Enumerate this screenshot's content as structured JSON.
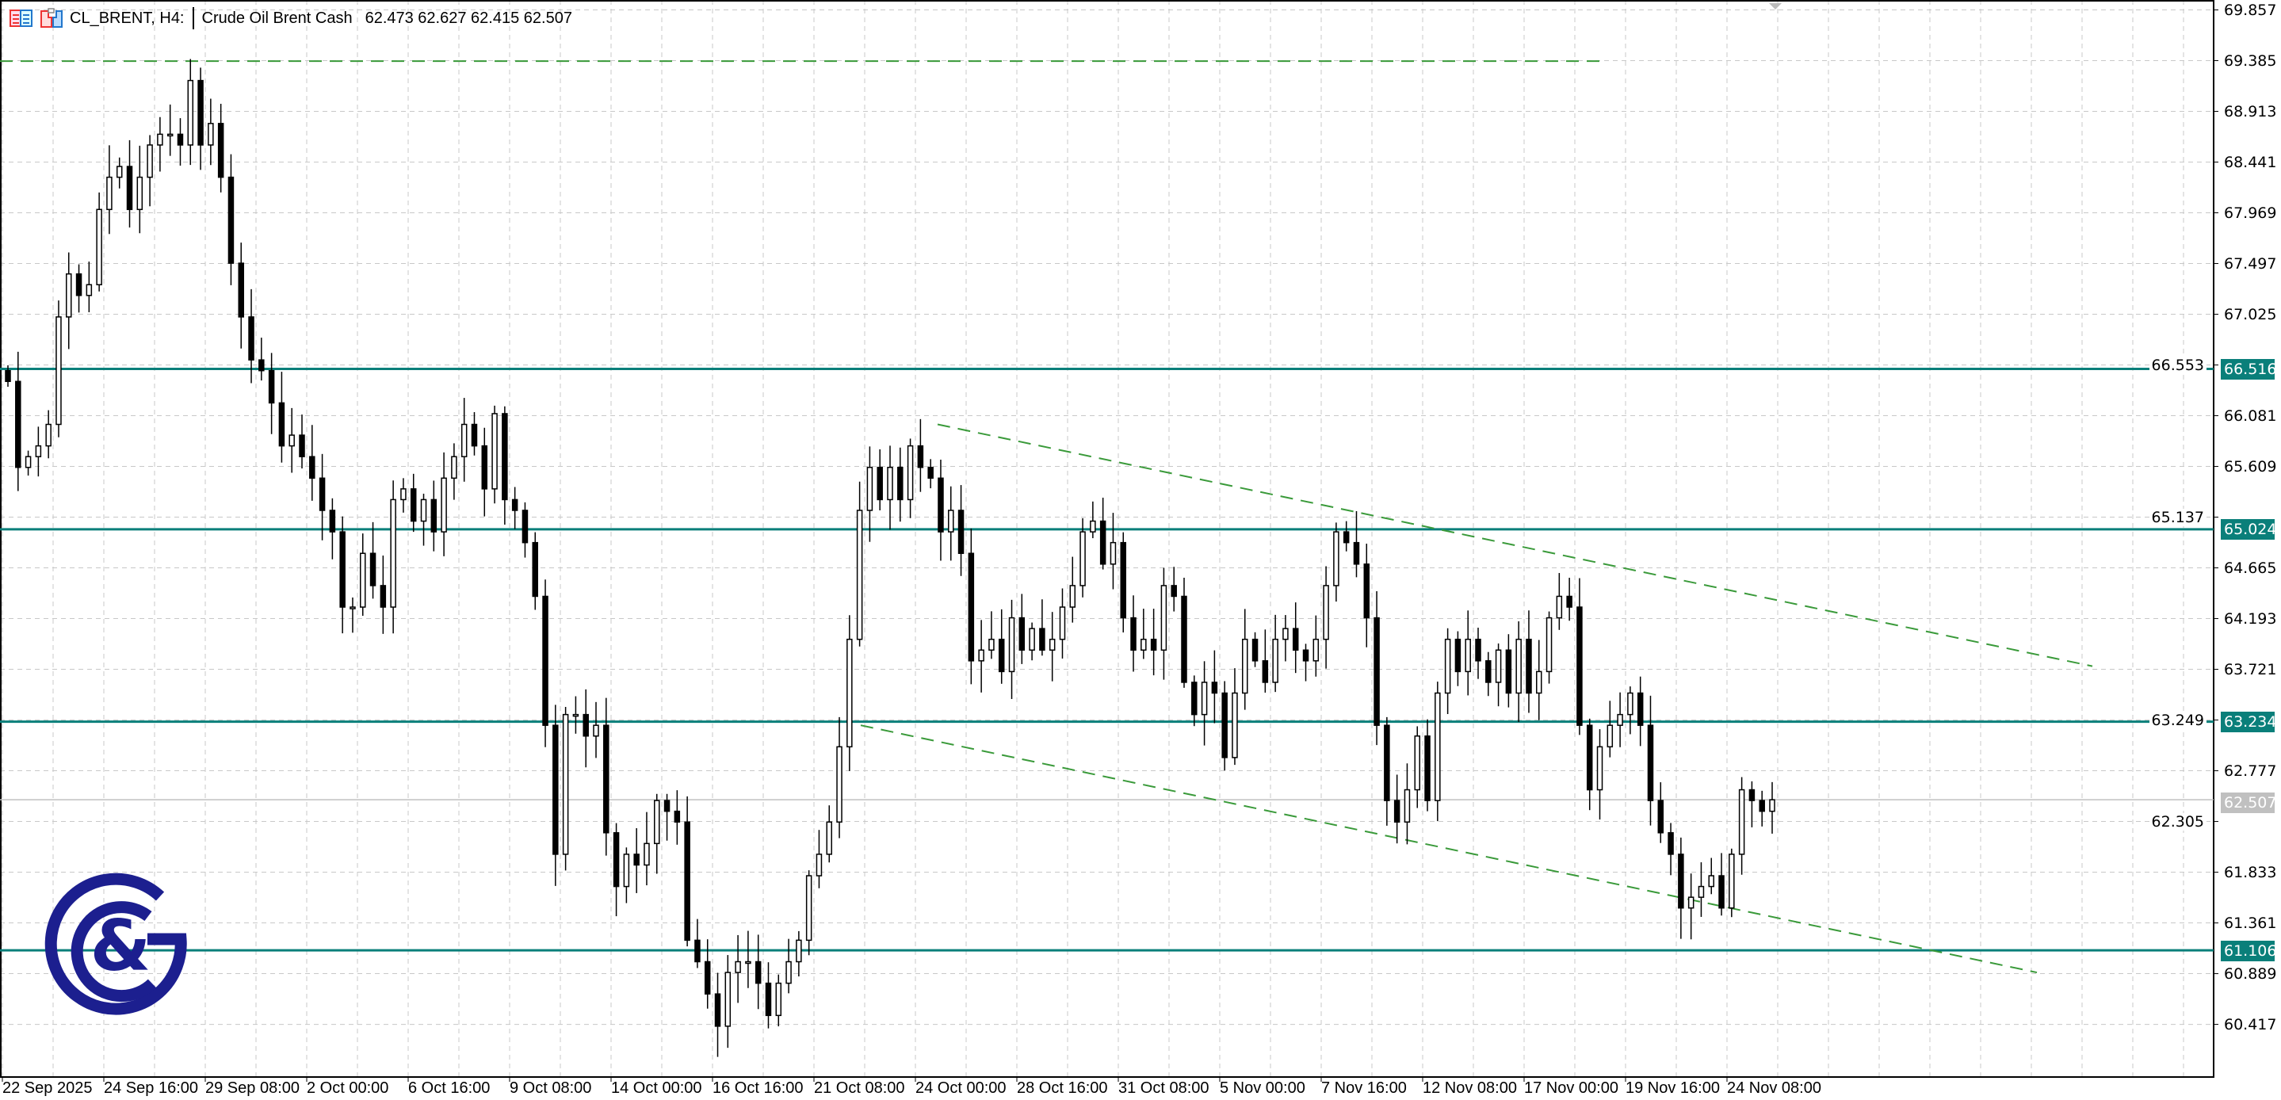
{
  "header": {
    "symbol": "CL_BRENT, H4:",
    "description": "Crude Oil Brent Cash",
    "ohlc": "62.473 62.627 62.415 62.507",
    "icons": [
      "one-click-trading-icon",
      "chart-shift-icon"
    ]
  },
  "colors": {
    "level_line": "#0a7f7a",
    "trend_line": "#3a9a3a",
    "bull": "#ffffff",
    "bear": "#000000",
    "logo": "#1c1f8f",
    "last_price": "#c0c0c0"
  },
  "chart_data": {
    "type": "candlestick",
    "symbol": "CL_BRENT",
    "timeframe": "H4",
    "y_ticks": [
      "69.857",
      "69.385",
      "68.913",
      "68.441",
      "67.969",
      "67.497",
      "67.025",
      "66.553",
      "66.081",
      "65.609",
      "65.137",
      "64.665",
      "64.193",
      "63.721",
      "63.249",
      "62.777",
      "62.305",
      "61.833",
      "61.361",
      "60.889",
      "60.417"
    ],
    "x_ticks": [
      "22 Sep 2025",
      "24 Sep 16:00",
      "29 Sep 08:00",
      "2 Oct 00:00",
      "6 Oct 16:00",
      "9 Oct 08:00",
      "14 Oct 00:00",
      "16 Oct 16:00",
      "21 Oct 08:00",
      "24 Oct 00:00",
      "28 Oct 16:00",
      "31 Oct 08:00",
      "5 Nov 00:00",
      "7 Nov 16:00",
      "12 Nov 08:00",
      "17 Nov 00:00",
      "19 Nov 16:00",
      "24 Nov 08:00"
    ],
    "grid": true,
    "closes": [
      66.4,
      65.6,
      65.7,
      65.8,
      66.0,
      67.0,
      67.4,
      67.2,
      67.3,
      68.0,
      68.3,
      68.4,
      68.0,
      68.3,
      68.6,
      68.7,
      68.7,
      68.6,
      69.2,
      68.6,
      68.8,
      68.3,
      67.5,
      67.0,
      66.6,
      66.5,
      66.2,
      65.8,
      65.9,
      65.7,
      65.5,
      65.2,
      65.0,
      64.3,
      64.3,
      64.8,
      64.5,
      64.3,
      65.3,
      65.4,
      65.1,
      65.3,
      65.0,
      65.5,
      65.7,
      66.0,
      65.8,
      65.4,
      66.1,
      65.3,
      65.2,
      64.9,
      64.4,
      63.2,
      62.0,
      63.3,
      63.3,
      63.1,
      63.2,
      62.2,
      61.7,
      62.0,
      61.9,
      62.1,
      62.5,
      62.4,
      62.3,
      61.2,
      61.0,
      60.7,
      60.4,
      60.9,
      61.0,
      61.0,
      60.8,
      60.5,
      60.8,
      61.0,
      61.2,
      61.8,
      62.0,
      62.3,
      63.0,
      64.0,
      65.2,
      65.6,
      65.3,
      65.6,
      65.3,
      65.8,
      65.6,
      65.5,
      65.0,
      65.2,
      64.8,
      63.8,
      63.9,
      64.0,
      63.7,
      64.2,
      63.9,
      64.1,
      63.9,
      64.0,
      64.3,
      64.5,
      65.0,
      65.1,
      64.7,
      64.9,
      64.2,
      63.9,
      64.0,
      63.9,
      64.5,
      64.4,
      63.6,
      63.3,
      63.6,
      63.5,
      62.9,
      63.5,
      64.0,
      63.8,
      63.6,
      64.0,
      64.1,
      63.9,
      63.8,
      64.0,
      64.5,
      65.0,
      64.9,
      64.7,
      64.2,
      63.2,
      62.5,
      62.3,
      62.6,
      63.1,
      62.5,
      63.5,
      64.0,
      63.7,
      64.0,
      63.8,
      63.6,
      63.9,
      63.5,
      64.0,
      63.5,
      63.7,
      64.2,
      64.4,
      64.3,
      63.2,
      62.6,
      63.0,
      63.2,
      63.3,
      63.5,
      63.2,
      62.5,
      62.2,
      62.0,
      61.5,
      61.6,
      61.7,
      61.8,
      61.5,
      62.0,
      62.6,
      62.5,
      62.4,
      62.507
    ],
    "horizontal_levels": [
      {
        "price": 66.516,
        "label": "66.516"
      },
      {
        "price": 65.024,
        "label": "65.024"
      },
      {
        "price": 63.234,
        "label": "63.234"
      },
      {
        "price": 61.106,
        "label": "61.106"
      }
    ],
    "resistance_dashed_price": 69.38,
    "channel": {
      "upper": [
        66.0,
        63.75
      ],
      "lower": [
        63.2,
        60.9
      ]
    },
    "last_price": {
      "price": 62.507,
      "label": "62.507"
    }
  },
  "logo": {
    "text": "G&C"
  }
}
